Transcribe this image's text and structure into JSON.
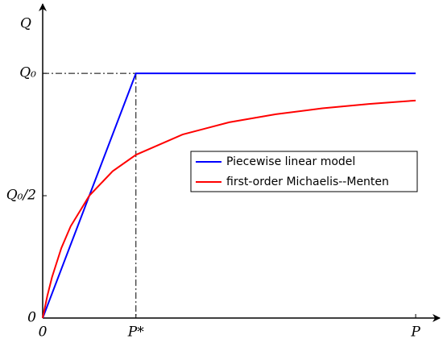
{
  "chart_data": {
    "type": "line",
    "ylabel": "Q",
    "xlim": [
      0,
      4.25
    ],
    "ylim": [
      0,
      1.28
    ],
    "xticks": [
      0,
      {
        "value": 1,
        "label": "P*"
      },
      {
        "value": 4,
        "label": "P"
      }
    ],
    "yticks": [
      0,
      {
        "value": 0.5,
        "label": "Q₀/2"
      },
      {
        "value": 1,
        "label": "Q₀"
      }
    ],
    "legend": "center-right",
    "series": [
      {
        "name": "Piecewise linear model",
        "color": "#0000ff",
        "x": [
          0,
          1,
          4
        ],
        "values": [
          0,
          1,
          1
        ]
      },
      {
        "name": "first-order Michaelis--Menten",
        "color": "#ff0000",
        "x": [
          0,
          0.05,
          0.1,
          0.2,
          0.3,
          0.5,
          0.75,
          1,
          1.5,
          2,
          2.5,
          3,
          3.5,
          4
        ],
        "values": [
          0,
          0.091,
          0.167,
          0.286,
          0.375,
          0.5,
          0.6,
          0.667,
          0.75,
          0.8,
          0.833,
          0.857,
          0.875,
          0.889
        ]
      }
    ]
  }
}
